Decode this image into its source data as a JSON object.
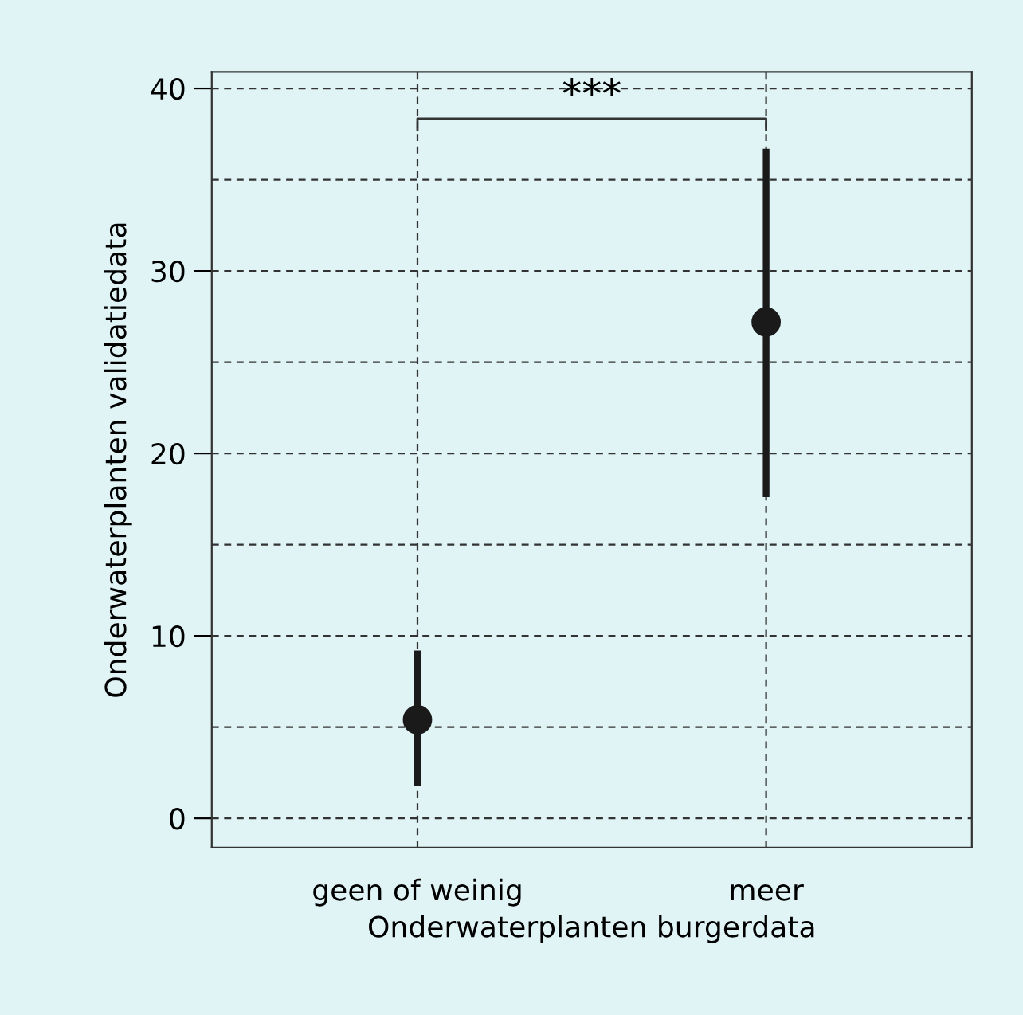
{
  "chart_data": {
    "type": "scatter",
    "xlabel": "Onderwaterplanten burgerdata",
    "ylabel": "Onderwaterplanten validatiedata",
    "categories": [
      "geen of weinig",
      "meer"
    ],
    "values": [
      5.4,
      27.2
    ],
    "errors": [
      [
        1.8,
        9.2
      ],
      [
        17.6,
        36.7
      ]
    ],
    "color": "#1a1a1a",
    "marker": "circle",
    "ylim": [
      -1.6,
      40.9
    ],
    "yticks": [
      0,
      10,
      20,
      30,
      40
    ],
    "grid": true,
    "annotations": [
      "***"
    ]
  }
}
